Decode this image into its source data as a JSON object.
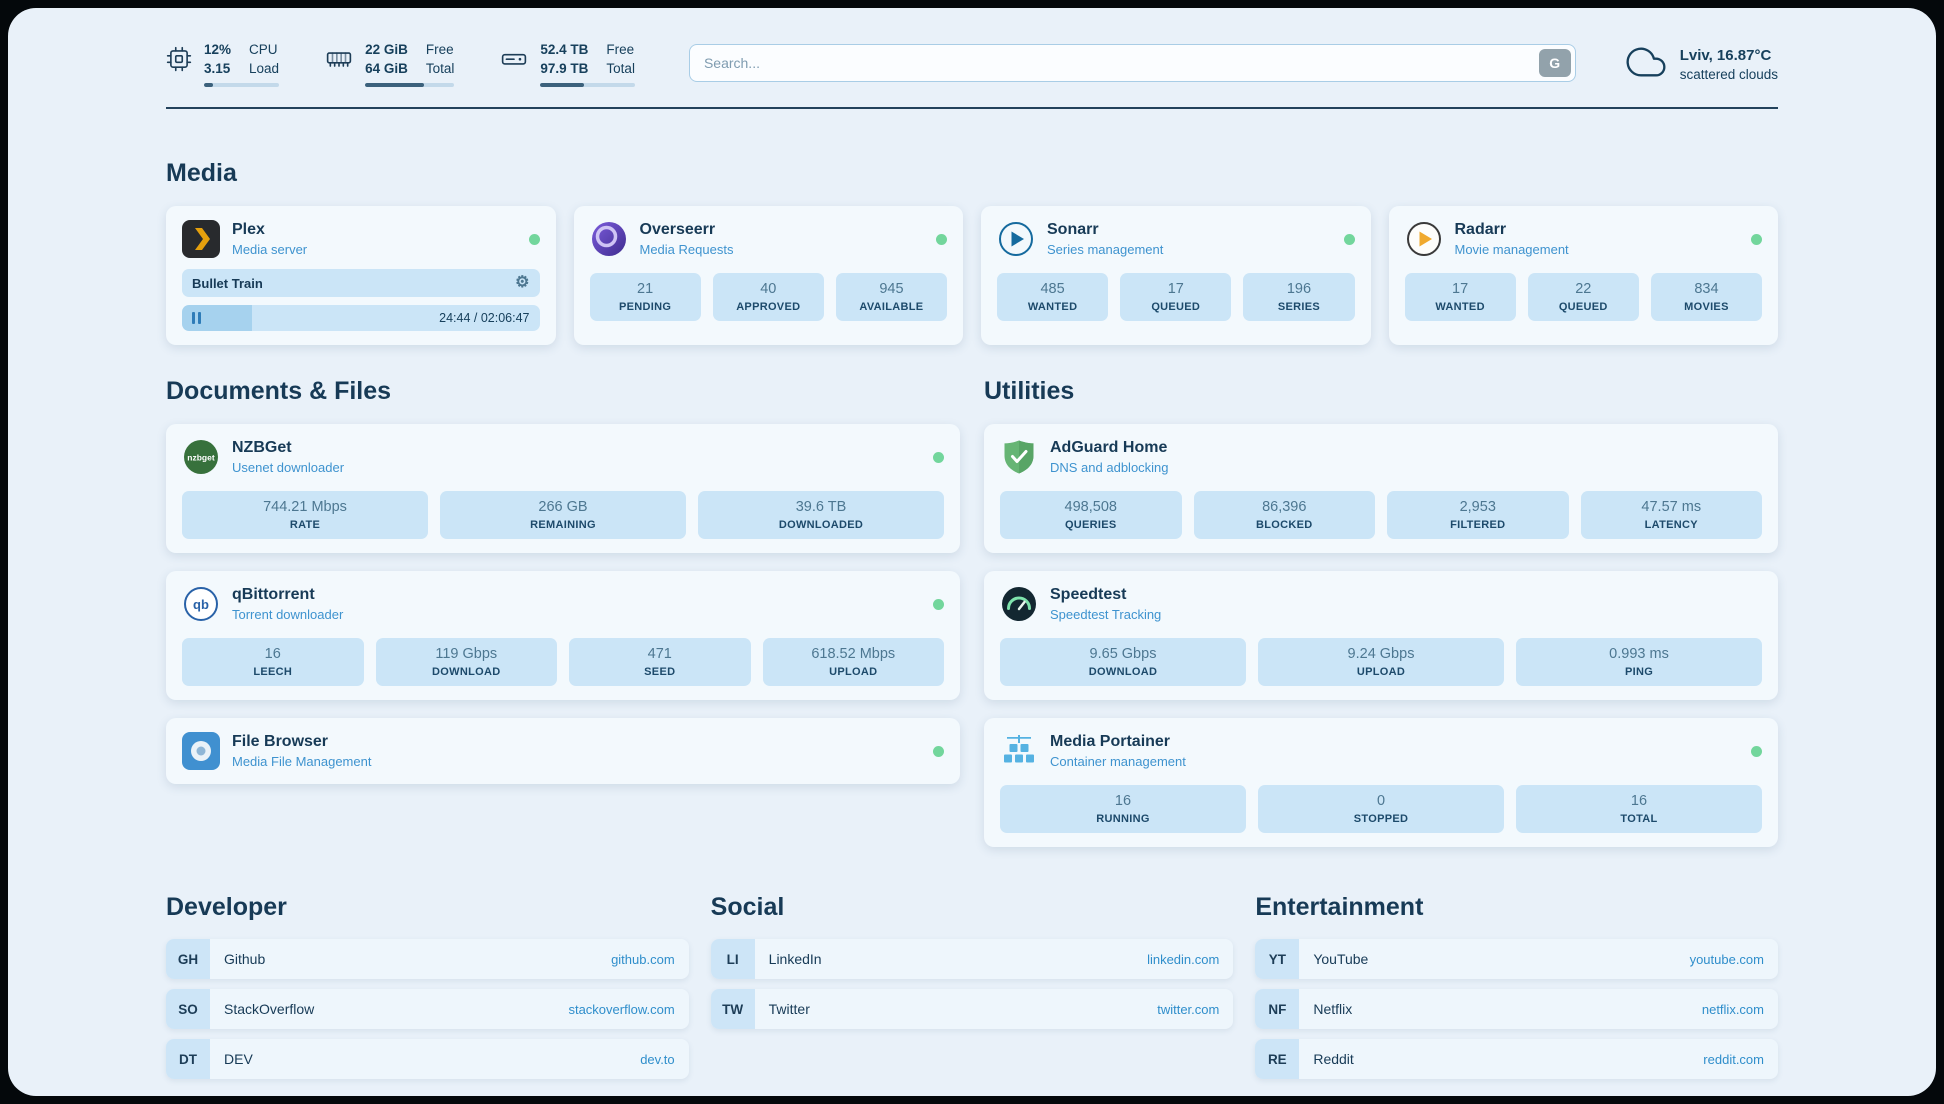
{
  "topbar": {
    "cpu": {
      "v1": "12%",
      "v2": "3.15",
      "l1": "CPU",
      "l2": "Load",
      "progress": 12
    },
    "ram": {
      "v1": "22 GiB",
      "v2": "64 GiB",
      "l1": "Free",
      "l2": "Total",
      "progress": 66
    },
    "disk": {
      "v1": "52.4 TB",
      "v2": "97.9 TB",
      "l1": "Free",
      "l2": "Total",
      "progress": 46
    },
    "search": {
      "placeholder": "Search...",
      "engine_button": "G"
    },
    "weather": {
      "location": "Lviv, 16.87°C",
      "condition": "scattered clouds"
    }
  },
  "icons": {
    "gear": "⚙",
    "nzbget_logo_text": "nzbget",
    "qbittorrent_logo_text": "qb"
  },
  "sections": {
    "media": {
      "title": "Media",
      "plex": {
        "name": "Plex",
        "subtitle": "Media server",
        "now_playing": "Bullet Train",
        "time": "24:44 / 02:06:47",
        "progress": 19.5
      },
      "overseerr": {
        "name": "Overseerr",
        "subtitle": "Media Requests",
        "stats": [
          {
            "value": "21",
            "label": "PENDING"
          },
          {
            "value": "40",
            "label": "APPROVED"
          },
          {
            "value": "945",
            "label": "AVAILABLE"
          }
        ]
      },
      "sonarr": {
        "name": "Sonarr",
        "subtitle": "Series management",
        "stats": [
          {
            "value": "485",
            "label": "WANTED"
          },
          {
            "value": "17",
            "label": "QUEUED"
          },
          {
            "value": "196",
            "label": "SERIES"
          }
        ]
      },
      "radarr": {
        "name": "Radarr",
        "subtitle": "Movie management",
        "stats": [
          {
            "value": "17",
            "label": "WANTED"
          },
          {
            "value": "22",
            "label": "QUEUED"
          },
          {
            "value": "834",
            "label": "MOVIES"
          }
        ]
      }
    },
    "documents": {
      "title": "Documents & Files",
      "nzbget": {
        "name": "NZBGet",
        "subtitle": "Usenet downloader",
        "stats": [
          {
            "value": "744.21 Mbps",
            "label": "RATE"
          },
          {
            "value": "266 GB",
            "label": "REMAINING"
          },
          {
            "value": "39.6 TB",
            "label": "DOWNLOADED"
          }
        ]
      },
      "qbittorrent": {
        "name": "qBittorrent",
        "subtitle": "Torrent downloader",
        "stats": [
          {
            "value": "16",
            "label": "LEECH"
          },
          {
            "value": "119 Gbps",
            "label": "DOWNLOAD"
          },
          {
            "value": "471",
            "label": "SEED"
          },
          {
            "value": "618.52 Mbps",
            "label": "UPLOAD"
          }
        ]
      },
      "filebrowser": {
        "name": "File Browser",
        "subtitle": "Media File Management"
      }
    },
    "utilities": {
      "title": "Utilities",
      "adguard": {
        "name": "AdGuard Home",
        "subtitle": "DNS and adblocking",
        "stats": [
          {
            "value": "498,508",
            "label": "QUERIES"
          },
          {
            "value": "86,396",
            "label": "BLOCKED"
          },
          {
            "value": "2,953",
            "label": "FILTERED"
          },
          {
            "value": "47.57 ms",
            "label": "LATENCY"
          }
        ]
      },
      "speedtest": {
        "name": "Speedtest",
        "subtitle": "Speedtest Tracking",
        "stats": [
          {
            "value": "9.65 Gbps",
            "label": "DOWNLOAD"
          },
          {
            "value": "9.24 Gbps",
            "label": "UPLOAD"
          },
          {
            "value": "0.993 ms",
            "label": "PING"
          }
        ]
      },
      "portainer": {
        "name": "Media Portainer",
        "subtitle": "Container management",
        "stats": [
          {
            "value": "16",
            "label": "RUNNING"
          },
          {
            "value": "0",
            "label": "STOPPED"
          },
          {
            "value": "16",
            "label": "TOTAL"
          }
        ]
      }
    },
    "bookmarks": [
      {
        "title": "Developer",
        "links": [
          {
            "abbr": "GH",
            "name": "Github",
            "url": "github.com"
          },
          {
            "abbr": "SO",
            "name": "StackOverflow",
            "url": "stackoverflow.com"
          },
          {
            "abbr": "DT",
            "name": "DEV",
            "url": "dev.to"
          }
        ]
      },
      {
        "title": "Social",
        "links": [
          {
            "abbr": "LI",
            "name": "LinkedIn",
            "url": "linkedin.com"
          },
          {
            "abbr": "TW",
            "name": "Twitter",
            "url": "twitter.com"
          }
        ]
      },
      {
        "title": "Entertainment",
        "links": [
          {
            "abbr": "YT",
            "name": "YouTube",
            "url": "youtube.com"
          },
          {
            "abbr": "NF",
            "name": "Netflix",
            "url": "netflix.com"
          },
          {
            "abbr": "RE",
            "name": "Reddit",
            "url": "reddit.com"
          }
        ]
      }
    ]
  },
  "colors": {
    "accent_blue": "#3e93cf",
    "status_green": "#72d69c",
    "chip_bg": "#cbe5f7",
    "text_dark": "#173a56"
  }
}
